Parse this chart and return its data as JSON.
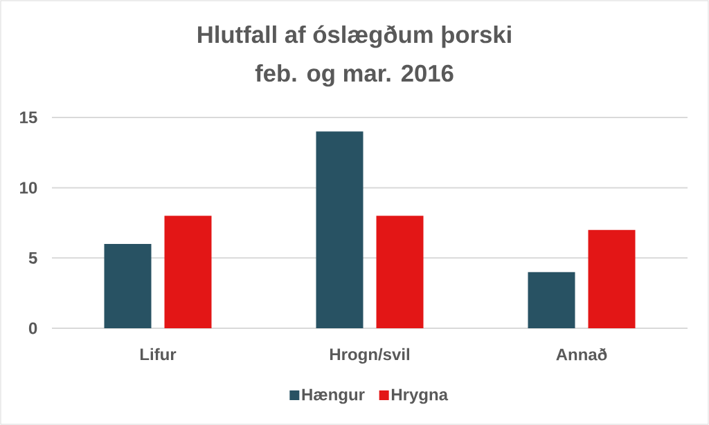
{
  "chart_data": {
    "type": "bar",
    "title": "Hlutfall af óslægðum þorski",
    "subtitle": "feb. og mar. 2016",
    "categories": [
      "Lifur",
      "Hrogn/svil",
      "Annað"
    ],
    "series": [
      {
        "name": "Hængur",
        "color": "#285263",
        "values": [
          6,
          14,
          4
        ]
      },
      {
        "name": "Hrygna",
        "color": "#e31616",
        "values": [
          8,
          8,
          7
        ]
      }
    ],
    "ylim": [
      0,
      15
    ],
    "yticks": [
      0,
      5,
      10,
      15
    ],
    "grid": "y",
    "legend": "bottom"
  }
}
